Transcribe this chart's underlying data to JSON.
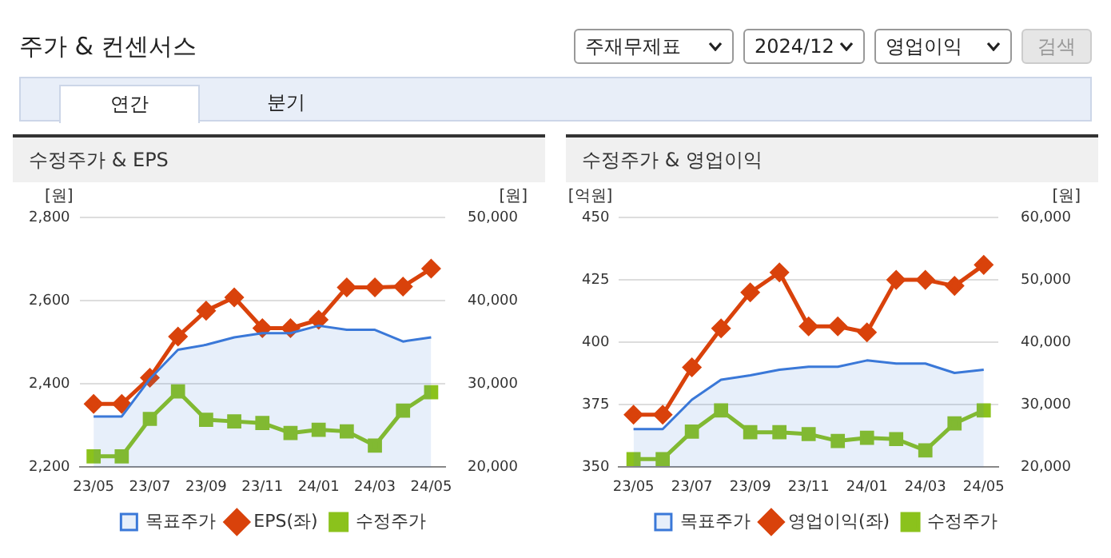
{
  "chart_data": [
    {
      "type": "other",
      "title": "주가 & 컨센서스",
      "annotations": [
        "주재무제표",
        "2024/12",
        "영업이익",
        "검색",
        "연간",
        "분기"
      ]
    },
    {
      "type": "line",
      "title": "수정주가 & EPS",
      "ylabel": "[원]",
      "y2label": "[원]",
      "categories": [
        "23/05",
        null,
        "23/07",
        null,
        "23/09",
        null,
        "23/11",
        null,
        "24/01",
        null,
        "24/03",
        null,
        "24/05"
      ],
      "series": [
        {
          "name": "목표주가",
          "type": "area",
          "axis": "y2",
          "color": "#3a78d8",
          "marker": "none",
          "values": [
            26100,
            26100,
            30600,
            34100,
            34700,
            35600,
            36100,
            36100,
            37000,
            36500,
            36500,
            35100,
            35600
          ]
        },
        {
          "name": "EPS(좌)",
          "type": "line",
          "color": "#d9420b",
          "marker": "diamond",
          "values": [
            2352,
            2352,
            2415,
            2514,
            2576,
            2608,
            2534,
            2534,
            2554,
            2632,
            2632,
            2634,
            2677
          ]
        },
        {
          "name": "수정주가",
          "type": "line",
          "axis": "y2",
          "color": "#8bc21c",
          "marker": "square",
          "values": [
            21300,
            21300,
            25800,
            29100,
            25700,
            25500,
            25300,
            24100,
            24500,
            24300,
            22600,
            26800,
            29000
          ]
        }
      ],
      "ylim": [
        2200,
        2800
      ],
      "yticks": [
        {
          "value": 2200,
          "label": "2,200"
        },
        {
          "value": 2400,
          "label": "2,400"
        },
        {
          "value": 2600,
          "label": "2,600"
        },
        {
          "value": 2800,
          "label": "2,800"
        }
      ],
      "y2lim": [
        20000,
        50000
      ],
      "y2ticks": [
        {
          "value": 20000,
          "label": "20,000"
        },
        {
          "value": 30000,
          "label": "30,000"
        },
        {
          "value": 40000,
          "label": "40,000"
        },
        {
          "value": 50000,
          "label": "50,000"
        }
      ],
      "grid": "y",
      "legend": "bottom"
    },
    {
      "type": "line",
      "title": "수정주가 & 영업이익",
      "ylabel": "[억원]",
      "y2label": "[원]",
      "categories": [
        "23/05",
        null,
        "23/07",
        null,
        "23/09",
        null,
        "23/11",
        null,
        "24/01",
        null,
        "24/03",
        null,
        "24/05"
      ],
      "series": [
        {
          "name": "목표주가",
          "type": "area",
          "axis": "y2",
          "color": "#3a78d8",
          "marker": "none",
          "values": [
            26100,
            26100,
            30800,
            34000,
            34700,
            35600,
            36100,
            36100,
            37100,
            36600,
            36600,
            35100,
            35600
          ]
        },
        {
          "name": "영업이익(좌)",
          "type": "line",
          "color": "#d9420b",
          "marker": "diamond",
          "values": [
            371,
            371,
            390,
            405.6,
            420,
            428,
            406.4,
            406.4,
            404,
            425,
            425,
            422.6,
            431
          ]
        },
        {
          "name": "수정주가",
          "type": "line",
          "axis": "y2",
          "color": "#8bc21c",
          "marker": "square",
          "values": [
            21300,
            21300,
            25700,
            29100,
            25600,
            25600,
            25300,
            24200,
            24700,
            24500,
            22700,
            27000,
            29100
          ]
        }
      ],
      "ylim": [
        350,
        450
      ],
      "yticks": [
        350,
        375,
        400,
        425,
        450
      ],
      "y2lim": [
        20000,
        60000
      ],
      "y2ticks": [
        {
          "value": 20000,
          "label": "20,000"
        },
        {
          "value": 30000,
          "label": "30,000"
        },
        {
          "value": 40000,
          "label": "40,000"
        },
        {
          "value": 50000,
          "label": "50,000"
        },
        {
          "value": 60000,
          "label": "60,000"
        }
      ],
      "grid": "y",
      "legend": "bottom"
    }
  ]
}
